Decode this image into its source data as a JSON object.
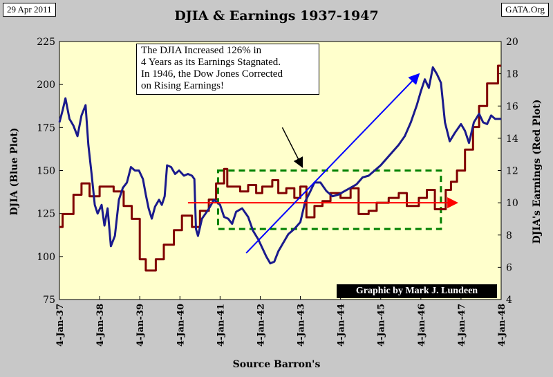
{
  "header": {
    "date": "29 Apr 2011",
    "source": "GATA.Org",
    "title": "DJIA & Earnings 1937-1947"
  },
  "annotation": {
    "lines": [
      "The DJIA Increased 126% in",
      "4 Years as its Earnings Stagnated.",
      "In 1946, the Dow Jones Corrected",
      "on Rising Earnings!"
    ]
  },
  "credit": "Graphic by Mark J. Lundeen",
  "chart_data": {
    "type": "line",
    "title": "DJIA & Earnings 1937-1947",
    "xlabel": "Source Barron's",
    "ylabel_left": "DJIA (Blue Plot)",
    "ylabel_right": "DJIA's Earnings (Red Plot)",
    "ylim_left": [
      75,
      225
    ],
    "yticks_left": [
      75,
      100,
      125,
      150,
      175,
      200,
      225
    ],
    "ylim_right": [
      4,
      20
    ],
    "yticks_right": [
      4,
      6,
      8,
      10,
      12,
      14,
      16,
      18,
      20
    ],
    "xlim": [
      1937.0,
      1948.0
    ],
    "xtick_labels": [
      "4-Jan-37",
      "4-Jan-38",
      "4-Jan-39",
      "4-Jan-40",
      "4-Jan-41",
      "4-Jan-42",
      "4-Jan-43",
      "4-Jan-44",
      "4-Jan-45",
      "4-Jan-46",
      "4-Jan-47",
      "4-Jan-48"
    ],
    "grid": false,
    "series": [
      {
        "name": "DJIA",
        "axis": "left",
        "color": "#1a1a8c",
        "points": [
          [
            1937.0,
            178
          ],
          [
            1937.08,
            185
          ],
          [
            1937.15,
            192
          ],
          [
            1937.25,
            180
          ],
          [
            1937.35,
            176
          ],
          [
            1937.45,
            170
          ],
          [
            1937.55,
            182
          ],
          [
            1937.65,
            188
          ],
          [
            1937.72,
            165
          ],
          [
            1937.8,
            148
          ],
          [
            1937.88,
            130
          ],
          [
            1937.95,
            125
          ],
          [
            1938.05,
            130
          ],
          [
            1938.12,
            118
          ],
          [
            1938.2,
            128
          ],
          [
            1938.28,
            106
          ],
          [
            1938.38,
            112
          ],
          [
            1938.48,
            133
          ],
          [
            1938.58,
            140
          ],
          [
            1938.68,
            143
          ],
          [
            1938.78,
            152
          ],
          [
            1938.88,
            150
          ],
          [
            1938.98,
            150
          ],
          [
            1939.08,
            145
          ],
          [
            1939.15,
            136
          ],
          [
            1939.22,
            128
          ],
          [
            1939.3,
            122
          ],
          [
            1939.38,
            129
          ],
          [
            1939.48,
            133
          ],
          [
            1939.55,
            130
          ],
          [
            1939.62,
            135
          ],
          [
            1939.68,
            153
          ],
          [
            1939.78,
            152
          ],
          [
            1939.88,
            148
          ],
          [
            1939.98,
            150
          ],
          [
            1940.1,
            147
          ],
          [
            1940.2,
            148
          ],
          [
            1940.3,
            147
          ],
          [
            1940.36,
            145
          ],
          [
            1940.4,
            116
          ],
          [
            1940.45,
            112
          ],
          [
            1940.55,
            122
          ],
          [
            1940.7,
            127
          ],
          [
            1940.85,
            133
          ],
          [
            1941.0,
            130
          ],
          [
            1941.1,
            123
          ],
          [
            1941.2,
            122
          ],
          [
            1941.3,
            119
          ],
          [
            1941.4,
            126
          ],
          [
            1941.55,
            128
          ],
          [
            1941.7,
            123
          ],
          [
            1941.82,
            115
          ],
          [
            1941.95,
            110
          ],
          [
            1942.05,
            105
          ],
          [
            1942.15,
            100
          ],
          [
            1942.25,
            96
          ],
          [
            1942.35,
            97
          ],
          [
            1942.45,
            103
          ],
          [
            1942.55,
            107
          ],
          [
            1942.7,
            113
          ],
          [
            1942.85,
            116
          ],
          [
            1943.0,
            120
          ],
          [
            1943.12,
            132
          ],
          [
            1943.25,
            138
          ],
          [
            1943.35,
            143
          ],
          [
            1943.5,
            143
          ],
          [
            1943.65,
            138
          ],
          [
            1943.8,
            135
          ],
          [
            1943.95,
            136
          ],
          [
            1944.1,
            138
          ],
          [
            1944.25,
            140
          ],
          [
            1944.4,
            142
          ],
          [
            1944.55,
            146
          ],
          [
            1944.7,
            147
          ],
          [
            1944.85,
            150
          ],
          [
            1945.0,
            153
          ],
          [
            1945.15,
            157
          ],
          [
            1945.3,
            161
          ],
          [
            1945.45,
            165
          ],
          [
            1945.6,
            170
          ],
          [
            1945.75,
            178
          ],
          [
            1945.9,
            188
          ],
          [
            1946.0,
            196
          ],
          [
            1946.1,
            203
          ],
          [
            1946.2,
            198
          ],
          [
            1946.3,
            210
          ],
          [
            1946.4,
            206
          ],
          [
            1946.5,
            201
          ],
          [
            1946.6,
            178
          ],
          [
            1946.72,
            167
          ],
          [
            1946.85,
            172
          ],
          [
            1947.0,
            177
          ],
          [
            1947.1,
            173
          ],
          [
            1947.2,
            166
          ],
          [
            1947.32,
            178
          ],
          [
            1947.45,
            183
          ],
          [
            1947.55,
            178
          ],
          [
            1947.65,
            177
          ],
          [
            1947.75,
            182
          ],
          [
            1947.85,
            180
          ],
          [
            1947.95,
            180
          ],
          [
            1948.0,
            180
          ]
        ]
      },
      {
        "name": "DJIA's Earnings",
        "axis": "right",
        "color": "#800000",
        "points": [
          [
            1937.0,
            8.5
          ],
          [
            1937.08,
            8.5
          ],
          [
            1937.08,
            9.3
          ],
          [
            1937.35,
            9.3
          ],
          [
            1937.35,
            10.5
          ],
          [
            1937.55,
            10.5
          ],
          [
            1937.55,
            11.2
          ],
          [
            1937.75,
            11.2
          ],
          [
            1937.75,
            10.4
          ],
          [
            1938.0,
            10.4
          ],
          [
            1938.0,
            11.0
          ],
          [
            1938.35,
            11.0
          ],
          [
            1938.35,
            10.7
          ],
          [
            1938.6,
            10.7
          ],
          [
            1938.6,
            9.8
          ],
          [
            1938.8,
            9.8
          ],
          [
            1938.8,
            9.0
          ],
          [
            1939.0,
            9.0
          ],
          [
            1939.0,
            6.5
          ],
          [
            1939.15,
            6.5
          ],
          [
            1939.15,
            5.8
          ],
          [
            1939.4,
            5.8
          ],
          [
            1939.4,
            6.5
          ],
          [
            1939.6,
            6.5
          ],
          [
            1939.6,
            7.4
          ],
          [
            1939.85,
            7.4
          ],
          [
            1939.85,
            8.3
          ],
          [
            1940.05,
            8.3
          ],
          [
            1940.05,
            9.2
          ],
          [
            1940.3,
            9.2
          ],
          [
            1940.3,
            8.5
          ],
          [
            1940.5,
            8.5
          ],
          [
            1940.5,
            9.5
          ],
          [
            1940.72,
            9.5
          ],
          [
            1940.72,
            10.2
          ],
          [
            1940.9,
            10.2
          ],
          [
            1940.9,
            11.2
          ],
          [
            1941.1,
            11.2
          ],
          [
            1941.1,
            12.1
          ],
          [
            1941.18,
            12.1
          ],
          [
            1941.18,
            11.0
          ],
          [
            1941.5,
            11.0
          ],
          [
            1941.5,
            10.7
          ],
          [
            1941.7,
            10.7
          ],
          [
            1941.7,
            11.1
          ],
          [
            1941.9,
            11.1
          ],
          [
            1941.9,
            10.6
          ],
          [
            1942.05,
            10.6
          ],
          [
            1942.05,
            11.0
          ],
          [
            1942.3,
            11.0
          ],
          [
            1942.3,
            11.4
          ],
          [
            1942.45,
            11.4
          ],
          [
            1942.45,
            10.6
          ],
          [
            1942.65,
            10.6
          ],
          [
            1942.65,
            10.9
          ],
          [
            1942.85,
            10.9
          ],
          [
            1942.85,
            10.3
          ],
          [
            1943.0,
            10.3
          ],
          [
            1943.0,
            11.0
          ],
          [
            1943.15,
            11.0
          ],
          [
            1943.15,
            9.1
          ],
          [
            1943.35,
            9.1
          ],
          [
            1943.35,
            9.8
          ],
          [
            1943.55,
            9.8
          ],
          [
            1943.55,
            10.1
          ],
          [
            1943.75,
            10.1
          ],
          [
            1943.75,
            10.6
          ],
          [
            1944.0,
            10.6
          ],
          [
            1944.0,
            10.3
          ],
          [
            1944.25,
            10.3
          ],
          [
            1944.25,
            10.9
          ],
          [
            1944.45,
            10.9
          ],
          [
            1944.45,
            9.3
          ],
          [
            1944.7,
            9.3
          ],
          [
            1944.7,
            9.5
          ],
          [
            1944.9,
            9.5
          ],
          [
            1944.9,
            10.0
          ],
          [
            1945.2,
            10.0
          ],
          [
            1945.2,
            10.3
          ],
          [
            1945.45,
            10.3
          ],
          [
            1945.45,
            10.6
          ],
          [
            1945.65,
            10.6
          ],
          [
            1945.65,
            9.8
          ],
          [
            1945.95,
            9.8
          ],
          [
            1945.95,
            10.3
          ],
          [
            1946.15,
            10.3
          ],
          [
            1946.15,
            10.8
          ],
          [
            1946.35,
            10.8
          ],
          [
            1946.35,
            9.6
          ],
          [
            1946.62,
            9.6
          ],
          [
            1946.62,
            10.8
          ],
          [
            1946.75,
            10.8
          ],
          [
            1946.75,
            11.3
          ],
          [
            1946.9,
            11.3
          ],
          [
            1946.9,
            12.0
          ],
          [
            1947.1,
            12.0
          ],
          [
            1947.1,
            13.3
          ],
          [
            1947.3,
            13.3
          ],
          [
            1947.3,
            14.7
          ],
          [
            1947.45,
            14.7
          ],
          [
            1947.45,
            16.0
          ],
          [
            1947.65,
            16.0
          ],
          [
            1947.65,
            17.4
          ],
          [
            1947.92,
            17.4
          ],
          [
            1947.92,
            18.5
          ],
          [
            1948.0,
            18.5
          ]
        ]
      }
    ],
    "annotations": [
      {
        "type": "arrow",
        "color": "#ff0000",
        "label": "flat earnings trend",
        "axis": "right",
        "from": [
          1940.2,
          10.0
        ],
        "to": [
          1946.9,
          10.0
        ]
      },
      {
        "type": "arrow",
        "color": "#0000ff",
        "label": "DJIA rising trend",
        "axis": "left",
        "from": [
          1941.65,
          102
        ],
        "to": [
          1945.95,
          206
        ]
      },
      {
        "type": "arrow",
        "color": "#000000",
        "label": "note pointer",
        "axis": "left",
        "from": [
          1942.55,
          175
        ],
        "to": [
          1943.05,
          152
        ]
      },
      {
        "type": "dashed-box",
        "color": "#008000",
        "label": "stagnation region",
        "axis": "left",
        "x0": 1940.95,
        "x1": 1946.5,
        "y0": 116,
        "y1": 150
      }
    ]
  }
}
